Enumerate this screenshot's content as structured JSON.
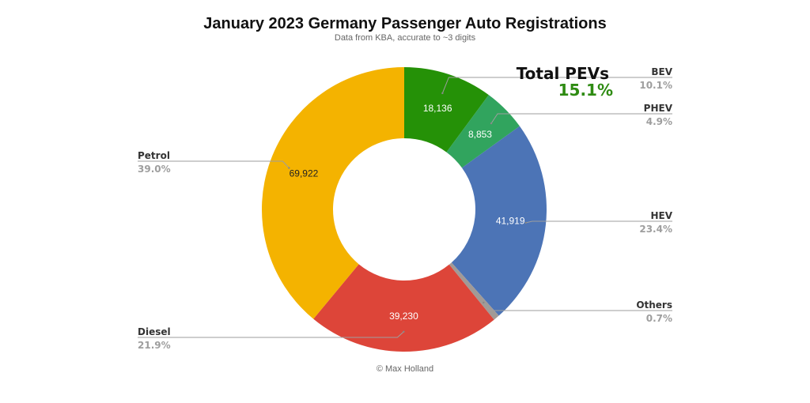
{
  "chart_data": {
    "type": "pie",
    "variant": "donut",
    "title": "January 2023 Germany Passenger Auto Registrations",
    "subtitle": "Data from KBA, accurate to ~3 digits",
    "footer": "© Max Holland",
    "start_angle_deg": 0,
    "direction": "clockwise",
    "slices": [
      {
        "name": "BEV",
        "value": 18136,
        "value_label": "18,136",
        "percent_label": "10.1%",
        "color": "#259107",
        "label_color": "#ffffff",
        "side": "right"
      },
      {
        "name": "PHEV",
        "value": 8853,
        "value_label": "8,853",
        "percent_label": "4.9%",
        "color": "#31a45e",
        "label_color": "#ffffff",
        "side": "right"
      },
      {
        "name": "HEV",
        "value": 41919,
        "value_label": "41,919",
        "percent_label": "23.4%",
        "color": "#4c74b6",
        "label_color": "#ffffff",
        "side": "right"
      },
      {
        "name": "Others",
        "value": 1250,
        "value_label": "",
        "percent_label": "0.7%",
        "color": "#a19a96",
        "label_color": "#ffffff",
        "side": "right"
      },
      {
        "name": "Diesel",
        "value": 39230,
        "value_label": "39,230",
        "percent_label": "21.9%",
        "color": "#dd4539",
        "label_color": "#ffffff",
        "side": "left"
      },
      {
        "name": "Petrol",
        "value": 69922,
        "value_label": "69,922",
        "percent_label": "39.0%",
        "color": "#f4b300",
        "label_color": "#222222",
        "side": "left"
      }
    ],
    "annotation": {
      "title": "Total PEVs",
      "value": "15.1%",
      "color": "#2e8b12"
    },
    "legend": "none (callout labels)"
  }
}
